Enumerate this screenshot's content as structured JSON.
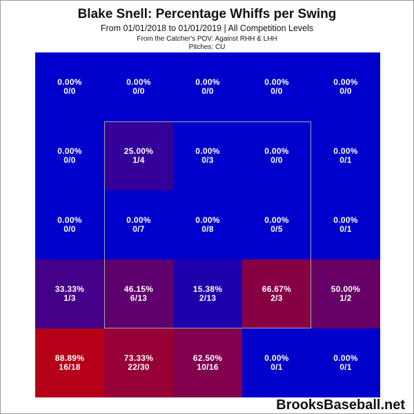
{
  "header": {
    "title": "Blake Snell: Percentage Whiffs per Swing",
    "subtitle": "From 01/01/2018 to 01/01/2019 | All Competition Levels",
    "pov_line": "From the Catcher's POV:  Against RHH & LHH",
    "pitches_line": "Pitches:  CU"
  },
  "watermark": "BrooksBaseball.net",
  "colors": {
    "low": "#0000cc",
    "high": "#cc0000",
    "zone_border": "#a8a8a8",
    "text": "#ffffff"
  },
  "chart_data": {
    "type": "heatmap",
    "rows": 5,
    "cols": 5,
    "strike_zone": "inner 3x3 cells",
    "cells": [
      [
        {
          "pct": "0.00%",
          "frac": "0/0",
          "value": 0.0
        },
        {
          "pct": "0.00%",
          "frac": "0/0",
          "value": 0.0
        },
        {
          "pct": "0.00%",
          "frac": "0/0",
          "value": 0.0
        },
        {
          "pct": "0.00%",
          "frac": "0/0",
          "value": 0.0
        },
        {
          "pct": "0.00%",
          "frac": "0/0",
          "value": 0.0
        }
      ],
      [
        {
          "pct": "0.00%",
          "frac": "0/0",
          "value": 0.0
        },
        {
          "pct": "25.00%",
          "frac": "1/4",
          "value": 25.0
        },
        {
          "pct": "0.00%",
          "frac": "0/3",
          "value": 0.0
        },
        {
          "pct": "0.00%",
          "frac": "0/0",
          "value": 0.0
        },
        {
          "pct": "0.00%",
          "frac": "0/1",
          "value": 0.0
        }
      ],
      [
        {
          "pct": "0.00%",
          "frac": "0/0",
          "value": 0.0
        },
        {
          "pct": "0.00%",
          "frac": "0/7",
          "value": 0.0
        },
        {
          "pct": "0.00%",
          "frac": "0/8",
          "value": 0.0
        },
        {
          "pct": "0.00%",
          "frac": "0/5",
          "value": 0.0
        },
        {
          "pct": "0.00%",
          "frac": "0/1",
          "value": 0.0
        }
      ],
      [
        {
          "pct": "33.33%",
          "frac": "1/3",
          "value": 33.33
        },
        {
          "pct": "46.15%",
          "frac": "6/13",
          "value": 46.15
        },
        {
          "pct": "15.38%",
          "frac": "2/13",
          "value": 15.38
        },
        {
          "pct": "66.67%",
          "frac": "2/3",
          "value": 66.67
        },
        {
          "pct": "50.00%",
          "frac": "1/2",
          "value": 50.0
        }
      ],
      [
        {
          "pct": "88.89%",
          "frac": "16/18",
          "value": 88.89
        },
        {
          "pct": "73.33%",
          "frac": "22/30",
          "value": 73.33
        },
        {
          "pct": "62.50%",
          "frac": "10/16",
          "value": 62.5
        },
        {
          "pct": "0.00%",
          "frac": "0/1",
          "value": 0.0
        },
        {
          "pct": "0.00%",
          "frac": "0/1",
          "value": 0.0
        }
      ]
    ]
  }
}
